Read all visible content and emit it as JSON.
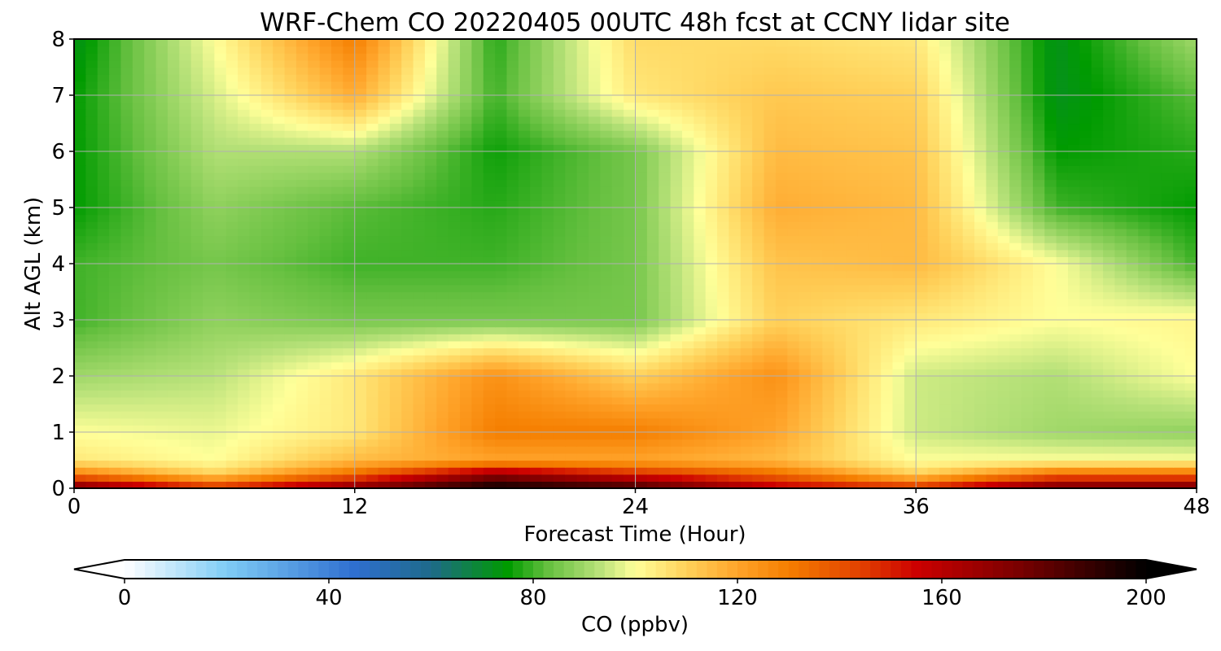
{
  "chart_data": {
    "type": "heatmap",
    "title": "WRF-Chem CO  20220405 00UTC 48h fcst at CCNY lidar site",
    "xlabel": "Forecast Time (Hour)",
    "ylabel": "Alt AGL (km)",
    "xlim": [
      0,
      48
    ],
    "ylim": [
      0,
      8
    ],
    "x_ticks": [
      0,
      12,
      24,
      36,
      48
    ],
    "y_ticks": [
      0,
      1,
      2,
      3,
      4,
      5,
      6,
      7,
      8
    ],
    "grid": true,
    "x": [
      0,
      6,
      12,
      18,
      24,
      30,
      36,
      42,
      48
    ],
    "y": [
      0,
      0.25,
      0.5,
      1,
      2,
      3,
      4,
      5,
      6,
      7,
      8
    ],
    "z": [
      [
        180,
        150,
        175,
        200,
        190,
        160,
        150,
        180,
        180
      ],
      [
        130,
        110,
        135,
        170,
        150,
        135,
        110,
        135,
        135
      ],
      [
        105,
        100,
        115,
        120,
        120,
        115,
        100,
        100,
        100
      ],
      [
        100,
        98,
        105,
        130,
        130,
        120,
        95,
        90,
        88
      ],
      [
        90,
        93,
        105,
        125,
        110,
        125,
        95,
        92,
        100
      ],
      [
        80,
        88,
        85,
        85,
        85,
        110,
        105,
        100,
        102
      ],
      [
        80,
        85,
        80,
        80,
        85,
        113,
        115,
        100,
        80
      ],
      [
        75,
        88,
        82,
        78,
        85,
        118,
        115,
        80,
        75
      ],
      [
        75,
        92,
        92,
        76,
        85,
        115,
        113,
        75,
        78
      ],
      [
        75,
        96,
        118,
        80,
        105,
        112,
        110,
        72,
        82
      ],
      [
        72,
        100,
        130,
        78,
        108,
        108,
        105,
        72,
        90
      ]
    ],
    "colorbar": {
      "label": "CO  (ppbv)",
      "min": 0,
      "max": 200,
      "ticks": [
        0,
        40,
        80,
        120,
        160,
        200
      ],
      "extend": "both",
      "stops": [
        {
          "v": 0,
          "c": "#ffffff"
        },
        {
          "v": 20,
          "c": "#7fccf6"
        },
        {
          "v": 45,
          "c": "#2f6fd0"
        },
        {
          "v": 60,
          "c": "#1e6a8a"
        },
        {
          "v": 75,
          "c": "#009b00"
        },
        {
          "v": 83,
          "c": "#66c040"
        },
        {
          "v": 93,
          "c": "#b9e27a"
        },
        {
          "v": 100,
          "c": "#ffff99"
        },
        {
          "v": 110,
          "c": "#ffd15a"
        },
        {
          "v": 120,
          "c": "#ffa42a"
        },
        {
          "v": 130,
          "c": "#f57e00"
        },
        {
          "v": 145,
          "c": "#e03c00"
        },
        {
          "v": 155,
          "c": "#cc0000"
        },
        {
          "v": 175,
          "c": "#7a0000"
        },
        {
          "v": 200,
          "c": "#000000"
        }
      ]
    }
  }
}
